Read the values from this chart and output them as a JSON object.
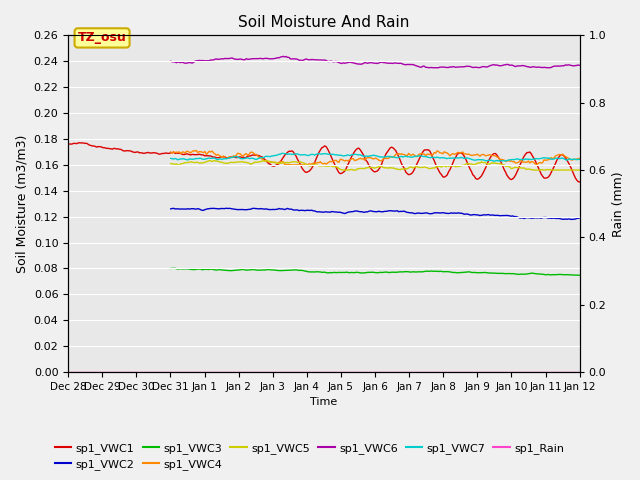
{
  "title": "Soil Moisture And Rain",
  "xlabel": "Time",
  "ylabel_left": "Soil Moisture (m3/m3)",
  "ylabel_right": "Rain (mm)",
  "ylim_left": [
    0.0,
    0.26
  ],
  "ylim_right": [
    0.0,
    1.0
  ],
  "xtick_labels": [
    "Dec 28",
    "Dec 29",
    "Dec 30",
    "Dec 31",
    "Jan 1",
    "Jan 2",
    "Jan 3",
    "Jan 4",
    "Jan 5",
    "Jan 6",
    "Jan 7",
    "Jan 8",
    "Jan 9",
    "Jan 10",
    "Jan 11",
    "Jan 12"
  ],
  "bg_color": "#e8e8e8",
  "fig_bg_color": "#f0f0f0",
  "label_box": {
    "text": "TZ_osu",
    "facecolor": "#ffff99",
    "edgecolor": "#ccaa00",
    "textcolor": "#cc0000"
  },
  "series": {
    "sp1_VWC1": {
      "color": "#dd0000",
      "lw": 1.0
    },
    "sp1_VWC2": {
      "color": "#0000cc",
      "lw": 1.0
    },
    "sp1_VWC3": {
      "color": "#00bb00",
      "lw": 1.0
    },
    "sp1_VWC4": {
      "color": "#ff8800",
      "lw": 1.0
    },
    "sp1_VWC5": {
      "color": "#cccc00",
      "lw": 1.0
    },
    "sp1_VWC6": {
      "color": "#aa00aa",
      "lw": 1.0
    },
    "sp1_VWC7": {
      "color": "#00cccc",
      "lw": 1.0
    },
    "sp1_Rain": {
      "color": "#ff44cc",
      "lw": 1.0
    }
  },
  "yticks_left": [
    0.0,
    0.02,
    0.04,
    0.06,
    0.08,
    0.1,
    0.12,
    0.14,
    0.16,
    0.18,
    0.2,
    0.22,
    0.24,
    0.26
  ],
  "yticks_right": [
    0.0,
    0.2,
    0.4,
    0.6,
    0.8,
    1.0
  ]
}
